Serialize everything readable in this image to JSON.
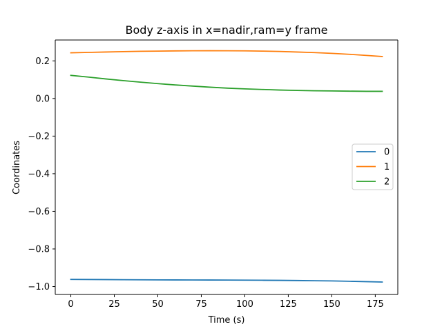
{
  "chart_data": {
    "type": "line",
    "title": "Body z-axis in x=nadir,ram=y frame",
    "xlabel": "Time (s)",
    "ylabel": "Coordinates",
    "xlim": [
      -8.95,
      187.95
    ],
    "ylim": [
      -1.042,
      0.311
    ],
    "xticks": [
      0,
      25,
      50,
      75,
      100,
      125,
      150,
      175
    ],
    "yticks": [
      -1.0,
      -0.8,
      -0.6,
      -0.4,
      -0.2,
      0.0,
      0.2
    ],
    "xtick_labels": [
      "0",
      "25",
      "50",
      "75",
      "100",
      "125",
      "150",
      "175"
    ],
    "ytick_labels": [
      "−1.0",
      "−0.8",
      "−0.6",
      "−0.4",
      "−0.2",
      "0.0",
      "0.2"
    ],
    "grid": false,
    "legend_placement": "center-right",
    "x": [
      0,
      10,
      20,
      30,
      40,
      50,
      60,
      70,
      80,
      90,
      100,
      110,
      120,
      130,
      140,
      150,
      160,
      170,
      179
    ],
    "series": [
      {
        "name": "0",
        "color": "#1f77b4",
        "values": [
          -0.962,
          -0.9625,
          -0.963,
          -0.9635,
          -0.964,
          -0.9645,
          -0.9648,
          -0.965,
          -0.9652,
          -0.9655,
          -0.966,
          -0.9665,
          -0.967,
          -0.968,
          -0.969,
          -0.97,
          -0.972,
          -0.974,
          -0.976
        ]
      },
      {
        "name": "1",
        "color": "#ff7f0e",
        "values": [
          0.243,
          0.245,
          0.247,
          0.249,
          0.251,
          0.252,
          0.253,
          0.2538,
          0.254,
          0.2538,
          0.2532,
          0.252,
          0.25,
          0.247,
          0.244,
          0.24,
          0.235,
          0.229,
          0.223
        ]
      },
      {
        "name": "2",
        "color": "#2ca02c",
        "values": [
          0.123,
          0.114,
          0.104,
          0.095,
          0.087,
          0.079,
          0.072,
          0.066,
          0.06,
          0.055,
          0.051,
          0.048,
          0.045,
          0.043,
          0.041,
          0.04,
          0.039,
          0.038,
          0.038
        ]
      }
    ]
  }
}
